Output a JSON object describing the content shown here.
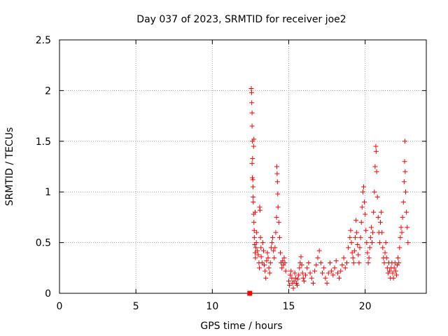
{
  "chart_data": {
    "type": "scatter",
    "title": "Day 037 of 2023, SRMTID for receiver joe2",
    "xlabel": "GPS time / hours",
    "ylabel": "SRMTID / TECUs",
    "xlim": [
      0,
      24
    ],
    "ylim": [
      0,
      2.5
    ],
    "xticks": [
      0,
      5,
      10,
      15,
      20
    ],
    "xtick_labels": [
      "0",
      "5",
      "10",
      "15",
      "20"
    ],
    "yticks": [
      0,
      0.5,
      1,
      1.5,
      2,
      2.5
    ],
    "ytick_labels": [
      "0",
      "0.5",
      "1",
      "1.5",
      "2",
      "2.5"
    ],
    "grid": true,
    "legend": "none",
    "marker_color": "#ff0000",
    "marker": "plus",
    "square_marker": {
      "x": 12.45,
      "y": 0.0
    },
    "series": [
      {
        "name": "SRMTID",
        "points": [
          [
            12.55,
            2.02
          ],
          [
            12.57,
            1.98
          ],
          [
            12.58,
            1.88
          ],
          [
            12.6,
            1.78
          ],
          [
            12.6,
            1.65
          ],
          [
            12.62,
            1.5
          ],
          [
            12.63,
            1.33
          ],
          [
            12.65,
            1.12
          ],
          [
            12.66,
            1.05
          ],
          [
            12.67,
            0.95
          ],
          [
            12.68,
            0.9
          ],
          [
            12.7,
            0.78
          ],
          [
            12.72,
            0.7
          ],
          [
            12.74,
            0.62
          ],
          [
            12.75,
            0.55
          ],
          [
            12.77,
            0.48
          ],
          [
            12.8,
            0.4
          ],
          [
            12.82,
            0.35
          ],
          [
            12.85,
            0.45
          ],
          [
            12.88,
            0.5
          ],
          [
            12.6,
            1.28
          ],
          [
            12.62,
            1.14
          ],
          [
            12.7,
            1.45
          ],
          [
            12.72,
            1.52
          ],
          [
            12.8,
            0.8
          ],
          [
            12.9,
            0.6
          ],
          [
            12.95,
            0.42
          ],
          [
            13.0,
            0.38
          ],
          [
            13.05,
            0.3
          ],
          [
            13.08,
            0.25
          ],
          [
            13.1,
            0.85
          ],
          [
            13.12,
            0.82
          ],
          [
            13.15,
            0.55
          ],
          [
            13.18,
            0.45
          ],
          [
            13.2,
            0.36
          ],
          [
            13.25,
            0.3
          ],
          [
            13.3,
            0.5
          ],
          [
            13.35,
            0.42
          ],
          [
            13.4,
            0.28
          ],
          [
            13.45,
            0.22
          ],
          [
            13.5,
            0.15
          ],
          [
            13.55,
            0.32
          ],
          [
            13.6,
            0.4
          ],
          [
            13.65,
            0.35
          ],
          [
            13.7,
            0.25
          ],
          [
            13.75,
            0.2
          ],
          [
            13.8,
            0.3
          ],
          [
            13.85,
            0.45
          ],
          [
            13.9,
            0.5
          ],
          [
            13.95,
            0.55
          ],
          [
            14.0,
            0.42
          ],
          [
            14.05,
            0.35
          ],
          [
            14.1,
            0.45
          ],
          [
            14.15,
            0.6
          ],
          [
            14.2,
            0.75
          ],
          [
            14.22,
            1.25
          ],
          [
            14.24,
            1.18
          ],
          [
            14.26,
            1.1
          ],
          [
            14.28,
            0.98
          ],
          [
            14.3,
            0.85
          ],
          [
            14.35,
            0.7
          ],
          [
            14.4,
            0.55
          ],
          [
            14.45,
            0.4
          ],
          [
            14.5,
            0.3
          ],
          [
            14.55,
            0.25
          ],
          [
            14.6,
            0.32
          ],
          [
            14.65,
            0.28
          ],
          [
            14.7,
            0.35
          ],
          [
            14.75,
            0.3
          ],
          [
            14.8,
            0.22
          ],
          [
            15.0,
            0.12
          ],
          [
            15.05,
            0.08
          ],
          [
            15.1,
            0.18
          ],
          [
            15.15,
            0.22
          ],
          [
            15.2,
            0.15
          ],
          [
            15.25,
            0.1
          ],
          [
            15.3,
            0.05
          ],
          [
            15.35,
            0.12
          ],
          [
            15.4,
            0.2
          ],
          [
            15.45,
            0.15
          ],
          [
            15.5,
            0.1
          ],
          [
            15.55,
            0.08
          ],
          [
            15.6,
            0.14
          ],
          [
            15.65,
            0.18
          ],
          [
            15.7,
            0.25
          ],
          [
            15.75,
            0.3
          ],
          [
            15.8,
            0.36
          ],
          [
            15.85,
            0.28
          ],
          [
            15.9,
            0.2
          ],
          [
            15.95,
            0.15
          ],
          [
            16.0,
            0.12
          ],
          [
            16.1,
            0.18
          ],
          [
            16.2,
            0.25
          ],
          [
            16.3,
            0.3
          ],
          [
            16.4,
            0.2
          ],
          [
            16.5,
            0.15
          ],
          [
            16.6,
            0.1
          ],
          [
            16.7,
            0.22
          ],
          [
            16.8,
            0.28
          ],
          [
            16.9,
            0.35
          ],
          [
            17.0,
            0.42
          ],
          [
            17.1,
            0.3
          ],
          [
            17.2,
            0.2
          ],
          [
            17.3,
            0.25
          ],
          [
            17.4,
            0.15
          ],
          [
            17.5,
            0.1
          ],
          [
            17.6,
            0.2
          ],
          [
            17.7,
            0.3
          ],
          [
            17.8,
            0.22
          ],
          [
            17.9,
            0.18
          ],
          [
            18.0,
            0.25
          ],
          [
            18.1,
            0.32
          ],
          [
            18.2,
            0.2
          ],
          [
            18.3,
            0.15
          ],
          [
            18.4,
            0.22
          ],
          [
            18.5,
            0.28
          ],
          [
            18.6,
            0.35
          ],
          [
            18.7,
            0.25
          ],
          [
            18.8,
            0.3
          ],
          [
            18.9,
            0.45
          ],
          [
            19.0,
            0.55
          ],
          [
            19.05,
            0.62
          ],
          [
            19.1,
            0.5
          ],
          [
            19.15,
            0.4
          ],
          [
            19.2,
            0.35
          ],
          [
            19.25,
            0.3
          ],
          [
            19.3,
            0.42
          ],
          [
            19.35,
            0.55
          ],
          [
            19.4,
            0.72
          ],
          [
            19.45,
            0.6
          ],
          [
            19.5,
            0.48
          ],
          [
            19.55,
            0.38
          ],
          [
            19.6,
            0.3
          ],
          [
            19.65,
            0.45
          ],
          [
            19.7,
            0.55
          ],
          [
            19.75,
            0.7
          ],
          [
            19.8,
            0.85
          ],
          [
            19.85,
            1.0
          ],
          [
            19.9,
            1.05
          ],
          [
            19.95,
            0.9
          ],
          [
            20.0,
            0.78
          ],
          [
            20.05,
            0.62
          ],
          [
            20.1,
            0.5
          ],
          [
            20.15,
            0.4
          ],
          [
            20.2,
            0.3
          ],
          [
            20.25,
            0.35
          ],
          [
            20.3,
            0.45
          ],
          [
            20.35,
            0.55
          ],
          [
            20.4,
            0.65
          ],
          [
            20.45,
            0.5
          ],
          [
            20.5,
            0.6
          ],
          [
            20.55,
            0.8
          ],
          [
            20.6,
            1.0
          ],
          [
            20.65,
            1.25
          ],
          [
            20.7,
            1.45
          ],
          [
            20.72,
            1.4
          ],
          [
            20.75,
            1.2
          ],
          [
            20.8,
            0.95
          ],
          [
            20.85,
            0.75
          ],
          [
            20.9,
            0.6
          ],
          [
            20.95,
            0.5
          ],
          [
            21.0,
            0.7
          ],
          [
            21.05,
            0.8
          ],
          [
            21.1,
            0.6
          ],
          [
            21.15,
            0.45
          ],
          [
            21.2,
            0.35
          ],
          [
            21.25,
            0.3
          ],
          [
            21.3,
            0.4
          ],
          [
            21.35,
            0.5
          ],
          [
            21.4,
            0.35
          ],
          [
            21.45,
            0.25
          ],
          [
            21.5,
            0.2
          ],
          [
            21.55,
            0.3
          ],
          [
            21.6,
            0.22
          ],
          [
            21.65,
            0.15
          ],
          [
            21.7,
            0.25
          ],
          [
            21.75,
            0.3
          ],
          [
            21.8,
            0.2
          ],
          [
            21.85,
            0.15
          ],
          [
            21.9,
            0.25
          ],
          [
            21.95,
            0.3
          ],
          [
            22.0,
            0.22
          ],
          [
            22.05,
            0.18
          ],
          [
            22.1,
            0.28
          ],
          [
            22.15,
            0.35
          ],
          [
            22.2,
            0.3
          ],
          [
            22.25,
            0.45
          ],
          [
            22.3,
            0.55
          ],
          [
            22.35,
            0.65
          ],
          [
            22.4,
            0.6
          ],
          [
            22.45,
            0.75
          ],
          [
            22.5,
            0.9
          ],
          [
            22.55,
            1.1
          ],
          [
            22.58,
            1.3
          ],
          [
            22.6,
            1.5
          ],
          [
            22.62,
            1.2
          ],
          [
            22.65,
            1.0
          ],
          [
            22.7,
            0.8
          ],
          [
            22.75,
            0.65
          ],
          [
            22.8,
            0.5
          ]
        ]
      }
    ]
  }
}
